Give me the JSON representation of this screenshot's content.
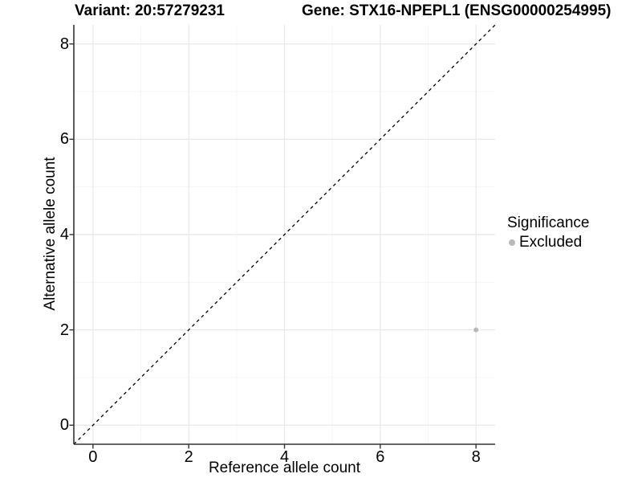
{
  "header": {
    "title_left": "Variant: 20:57279231",
    "title_right": "Gene: STX16-NPEPL1 (ENSG00000254995)"
  },
  "chart_data": {
    "type": "scatter",
    "xlabel": "Reference allele count",
    "ylabel": "Alternative allele count",
    "xlim": [
      -0.4,
      8.4
    ],
    "ylim": [
      -0.4,
      8.4
    ],
    "x_ticks": [
      0,
      2,
      4,
      6,
      8
    ],
    "y_ticks": [
      0,
      2,
      4,
      6,
      8
    ],
    "x_minor_ticks": [
      1,
      3,
      5,
      7
    ],
    "y_minor_ticks": [
      1,
      3,
      5,
      7
    ],
    "grid": true,
    "identity_line": {
      "slope": 1,
      "intercept": 0,
      "style": "dashed",
      "color": "#000000"
    },
    "series": [
      {
        "name": "Excluded",
        "color": "#b9b9b9",
        "points": [
          {
            "x": 8,
            "y": 2
          }
        ]
      }
    ],
    "legend": {
      "title": "Significance",
      "position": "right",
      "items": [
        {
          "label": "Excluded",
          "color": "#b9b9b9"
        }
      ]
    },
    "colors": {
      "grid_major": "#e8e8e8",
      "grid_minor": "#f4f4f4",
      "axis": "#333333",
      "text": "#000000",
      "background": "#ffffff"
    }
  }
}
